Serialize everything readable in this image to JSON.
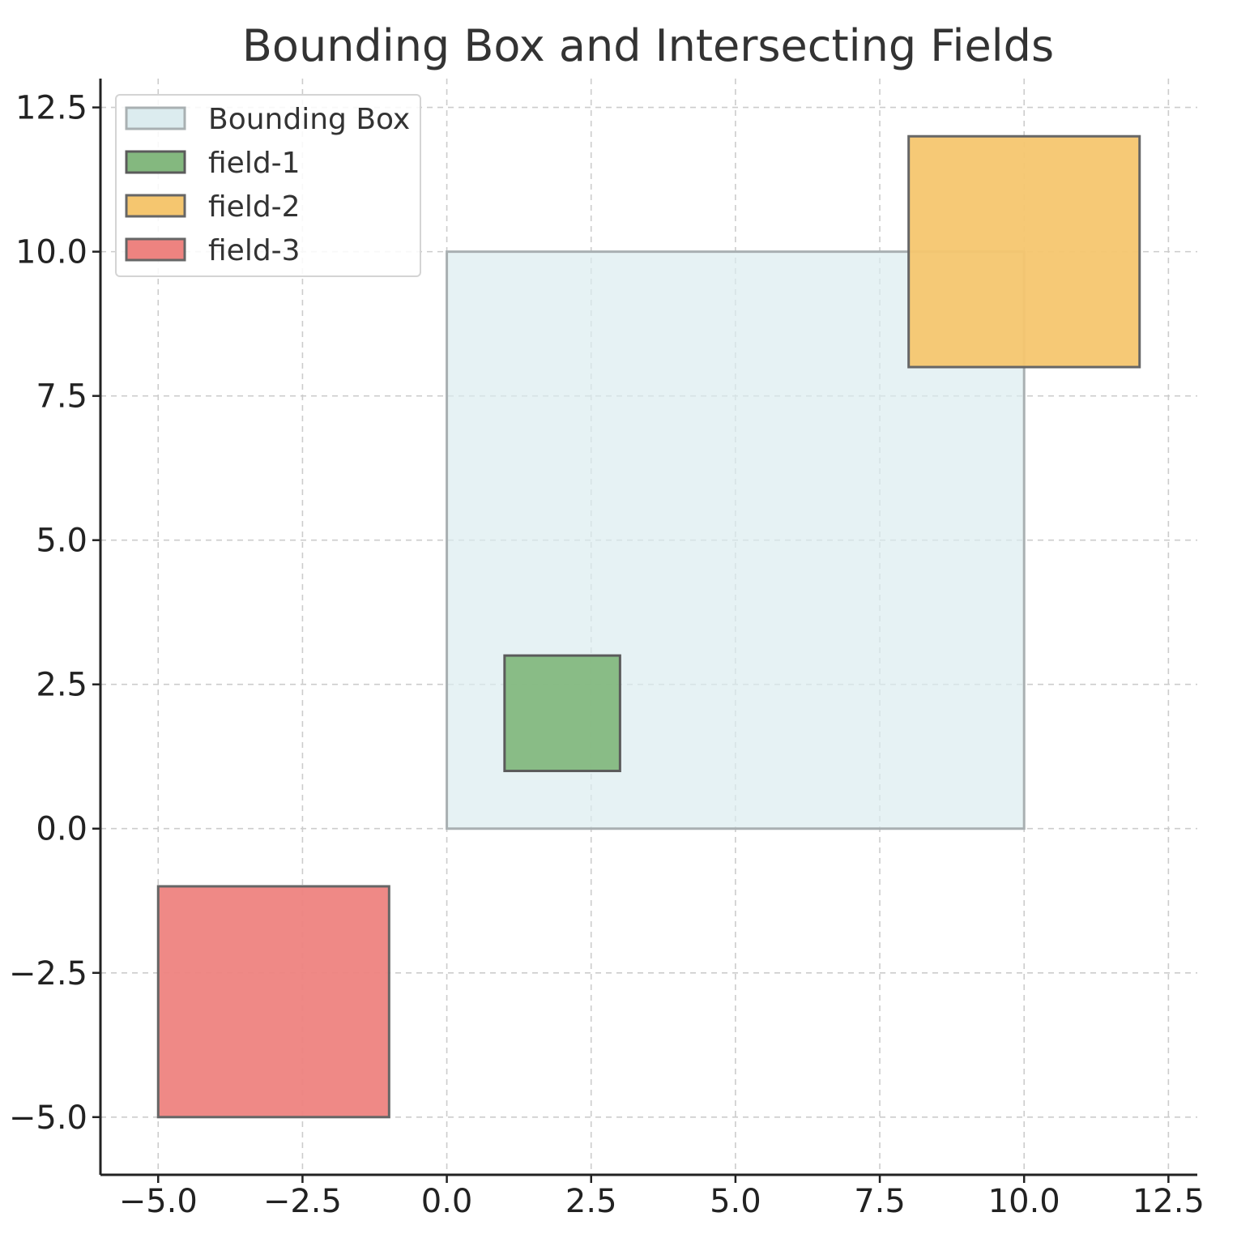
{
  "chart_data": {
    "type": "rectangles",
    "title": "Bounding Box and Intersecting Fields",
    "xlabel": "",
    "ylabel": "",
    "xlim": [
      -6,
      13
    ],
    "ylim": [
      -6,
      13
    ],
    "xticks": [
      -5.0,
      -2.5,
      0.0,
      2.5,
      5.0,
      7.5,
      10.0,
      12.5
    ],
    "yticks": [
      -5.0,
      -2.5,
      0.0,
      2.5,
      5.0,
      7.5,
      10.0,
      12.5
    ],
    "xtick_labels": [
      "−5.0",
      "−2.5",
      "0.0",
      "2.5",
      "5.0",
      "7.5",
      "10.0",
      "12.5"
    ],
    "ytick_labels": [
      "−5.0",
      "−2.5",
      "0.0",
      "2.5",
      "5.0",
      "7.5",
      "10.0",
      "12.5"
    ],
    "grid": true,
    "legend_position": "top-left",
    "series": [
      {
        "name": "Bounding Box",
        "x0": 0,
        "y0": 0,
        "x1": 10,
        "y1": 10,
        "fill": "#dcecef",
        "stroke": "#a9b0b2"
      },
      {
        "name": "field-1",
        "x0": 1,
        "y0": 1,
        "x1": 3,
        "y1": 3,
        "fill": "#84b87f",
        "stroke": "#5b5b5b"
      },
      {
        "name": "field-2",
        "x0": 8,
        "y0": 8,
        "x1": 12,
        "y1": 12,
        "fill": "#f5c66f",
        "stroke": "#666666"
      },
      {
        "name": "field-3",
        "x0": -5,
        "y0": -5,
        "x1": -1,
        "y1": -1,
        "fill": "#ee8380",
        "stroke": "#666666"
      }
    ]
  }
}
